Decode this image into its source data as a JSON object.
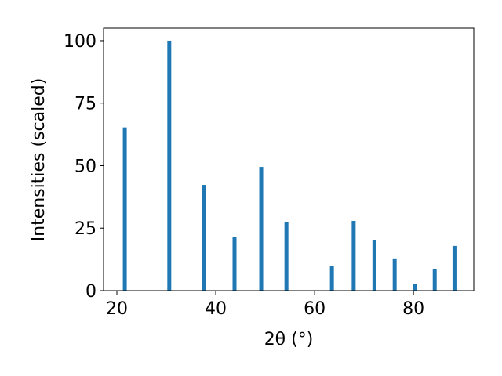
{
  "chart_data": {
    "type": "bar",
    "xlabel": "2θ (°)",
    "ylabel": "Intensities (scaled)",
    "x": [
      21.6,
      30.6,
      37.6,
      43.8,
      49.2,
      54.3,
      63.5,
      67.9,
      72.1,
      76.2,
      80.3,
      84.3,
      88.3
    ],
    "values": [
      65.3,
      100,
      42.3,
      21.6,
      49.5,
      27.3,
      10.0,
      27.9,
      20.1,
      12.9,
      2.5,
      8.5,
      17.9
    ],
    "color": "#1f77b4",
    "xlim": [
      17.3,
      92.2
    ],
    "xticks": [
      20,
      40,
      60,
      80
    ],
    "ylim": [
      0,
      105
    ],
    "yticks": [
      0,
      25,
      50,
      75,
      100
    ],
    "grid": false
  }
}
